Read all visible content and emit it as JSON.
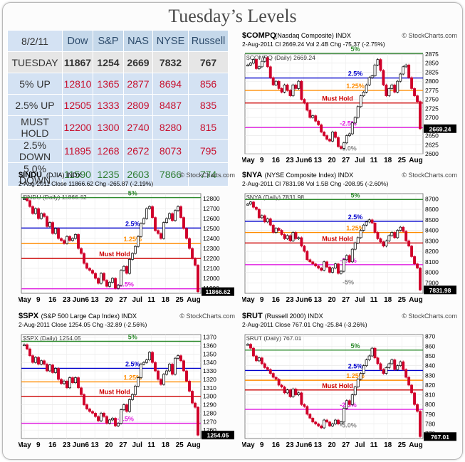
{
  "title": "Tuesday’s Levels",
  "table": {
    "date": "8/2/11",
    "columns": [
      "Dow",
      "S&P",
      "NAS",
      "NYSE",
      "Russell"
    ],
    "rows": [
      {
        "label": "TUESDAY",
        "values": [
          "11867",
          "1254",
          "2669",
          "7832",
          "767"
        ],
        "tone": "tue"
      },
      {
        "label": "5% UP",
        "values": [
          "12810",
          "1365",
          "2877",
          "8694",
          "856"
        ],
        "tone": "up"
      },
      {
        "label": "2.5% UP",
        "values": [
          "12505",
          "1333",
          "2809",
          "8487",
          "835"
        ],
        "tone": "up"
      },
      {
        "label": "MUST HOLD",
        "values": [
          "12200",
          "1300",
          "2740",
          "8280",
          "815"
        ],
        "tone": "mh"
      },
      {
        "label": "2.5% DOWN",
        "values": [
          "11895",
          "1268",
          "2672",
          "8073",
          "795"
        ],
        "tone": "d25"
      },
      {
        "label": "5.0% DOWN",
        "values": [
          "11590",
          "1235",
          "2603",
          "7866",
          "774"
        ],
        "tone": "dn"
      }
    ]
  },
  "chart_data": [
    {
      "type": "line",
      "id": "compq",
      "symbol": "$COMPQ",
      "name": "(Nasdaq Composite) INDX",
      "brand": "© StockCharts.com",
      "info": "2-Aug-2011   Cl 2669.24  Vol 2.4B  Chg -75.37 (-2.75%)",
      "legend": "$COMPQ (Daily) 2669.24",
      "x_labels": [
        "May",
        "9",
        "16",
        "23",
        "Jun6",
        "13",
        "20",
        "27",
        "Jul",
        "11",
        "18",
        "25",
        "Aug"
      ],
      "ylim": [
        2600,
        2875
      ],
      "yticks": [
        2600,
        2625,
        2650,
        2675,
        2700,
        2725,
        2750,
        2775,
        2800,
        2825,
        2850,
        2875
      ],
      "last": "2669.24",
      "last_value": 2669.24,
      "levels": [
        {
          "label": "5%",
          "value": 2877,
          "color": "#2e8b2e"
        },
        {
          "label": "2.5%",
          "value": 2809,
          "color": "#0000cc"
        },
        {
          "label": "1.25%",
          "value": 2775,
          "color": "#ff8c00"
        },
        {
          "label": "Must Hold",
          "value": 2740,
          "color": "#cc0000"
        },
        {
          "label": "-2.5%",
          "value": 2672,
          "color": "#e020e0"
        },
        {
          "label": "-5.0%",
          "value": 2603,
          "color": "#888888"
        }
      ],
      "closes": [
        2845,
        2850,
        2860,
        2835,
        2840,
        2855,
        2865,
        2840,
        2810,
        2790,
        2800,
        2780,
        2770,
        2790,
        2775,
        2760,
        2790,
        2780,
        2800,
        2750,
        2740,
        2720,
        2700,
        2705,
        2690,
        2680,
        2660,
        2650,
        2640,
        2635,
        2660,
        2645,
        2620,
        2615,
        2630,
        2650,
        2655,
        2685,
        2700,
        2730,
        2760,
        2770,
        2790,
        2810,
        2815,
        2845,
        2860,
        2830,
        2790,
        2760,
        2780,
        2790,
        2770,
        2800,
        2820,
        2840,
        2845,
        2810,
        2780,
        2760,
        2744,
        2669
      ]
    },
    {
      "type": "line",
      "id": "indu",
      "symbol": "$INDU",
      "name": "(DJIA) INDX",
      "brand": "© StockCharts.com",
      "info": "2-Aug-2011   Close 11866.62  Chg -265.87 (-2.19%)",
      "legend": "$INDU (Daily) 11866.62",
      "x_labels": [
        "May",
        "9",
        "16",
        "23",
        "Jun6",
        "13",
        "20",
        "27",
        "Jul",
        "11",
        "18",
        "25",
        "Aug"
      ],
      "ylim": [
        11850,
        12850
      ],
      "yticks": [
        11900,
        12000,
        12100,
        12200,
        12300,
        12400,
        12500,
        12600,
        12700,
        12800
      ],
      "last": "11866.62",
      "last_value": 11866.62,
      "levels": [
        {
          "label": "5%",
          "value": 12810,
          "color": "#2e8b2e"
        },
        {
          "label": "2.5%",
          "value": 12505,
          "color": "#0000cc"
        },
        {
          "label": "1.25%",
          "value": 12350,
          "color": "#ff8c00"
        },
        {
          "label": "Must Hold",
          "value": 12200,
          "color": "#cc0000"
        },
        {
          "label": "-2.5%",
          "value": 11895,
          "color": "#e020e0"
        }
      ],
      "closes": [
        12800,
        12780,
        12720,
        12650,
        12700,
        12600,
        12650,
        12620,
        12520,
        12560,
        12450,
        12500,
        12400,
        12380,
        12350,
        12420,
        12380,
        12400,
        12440,
        12300,
        12250,
        12150,
        12100,
        12080,
        12050,
        12000,
        11950,
        12050,
        11980,
        11920,
        11960,
        12000,
        11900,
        11930,
        12080,
        12120,
        12050,
        12190,
        12250,
        12320,
        12420,
        12550,
        12600,
        12700,
        12720,
        12610,
        12480,
        12450,
        12400,
        12560,
        12600,
        12650,
        12580,
        12680,
        12720,
        12610,
        12500,
        12400,
        12300,
        12200,
        12132,
        11866
      ]
    },
    {
      "type": "line",
      "id": "nya",
      "symbol": "$NYA",
      "name": "(NYSE Composite Index) INDX",
      "brand": "© StockCharts.com",
      "info": "2-Aug-2011   Cl 7831.98  Vol 1.5B  Chg -208.95 (-2.60%)",
      "legend": "$NYA (Daily) 7831.98",
      "x_labels": [
        "May",
        "9",
        "16",
        "23",
        "Jun6",
        "13",
        "20",
        "27",
        "Jul",
        "11",
        "18",
        "25",
        "Aug"
      ],
      "ylim": [
        7800,
        8750
      ],
      "yticks": [
        7900,
        8000,
        8100,
        8200,
        8300,
        8400,
        8500,
        8600,
        8700
      ],
      "last": "7831.98",
      "last_value": 7831.98,
      "levels": [
        {
          "label": "5%",
          "value": 8694,
          "color": "#2e8b2e"
        },
        {
          "label": "2.5%",
          "value": 8487,
          "color": "#0000cc"
        },
        {
          "label": "1.25%",
          "value": 8380,
          "color": "#ff8c00"
        },
        {
          "label": "Must Hold",
          "value": 8280,
          "color": "#cc0000"
        },
        {
          "label": "-2.5%",
          "value": 8073,
          "color": "#e020e0"
        },
        {
          "label": "-5%",
          "value": 7866,
          "color": "#888888"
        }
      ],
      "closes": [
        8650,
        8670,
        8620,
        8600,
        8520,
        8540,
        8480,
        8510,
        8450,
        8380,
        8420,
        8400,
        8360,
        8320,
        8350,
        8300,
        8380,
        8320,
        8330,
        8250,
        8200,
        8120,
        8100,
        8080,
        8060,
        8040,
        8020,
        8100,
        8050,
        8000,
        8040,
        8080,
        7990,
        8010,
        8120,
        8160,
        8100,
        8220,
        8280,
        8330,
        8400,
        8450,
        8480,
        8500,
        8470,
        8380,
        8320,
        8290,
        8250,
        8300,
        8350,
        8380,
        8330,
        8400,
        8430,
        8390,
        8300,
        8250,
        8150,
        8080,
        8041,
        7832
      ]
    },
    {
      "type": "line",
      "id": "spx",
      "symbol": "$SPX",
      "name": "(S&P 500 Large Cap Index) INDX",
      "brand": "© StockCharts.com",
      "info": "2-Aug-2011   Close 1254.05  Chg -32.89 (-2.56%)",
      "legend": "$SPX (Daily) 1254.05",
      "x_labels": [
        "May",
        "9",
        "16",
        "23",
        "Jun6",
        "13",
        "20",
        "27",
        "Jul",
        "11",
        "18",
        "25",
        "Aug"
      ],
      "ylim": [
        1250,
        1373
      ],
      "yticks": [
        1260,
        1270,
        1280,
        1290,
        1300,
        1310,
        1320,
        1330,
        1340,
        1350,
        1360,
        1370
      ],
      "last": "1254.05",
      "last_value": 1254.05,
      "levels": [
        {
          "label": "5%",
          "value": 1365,
          "color": "#2e8b2e"
        },
        {
          "label": "2.5%",
          "value": 1333,
          "color": "#0000cc"
        },
        {
          "label": "1.25%",
          "value": 1317,
          "color": "#ff8c00"
        },
        {
          "label": "Must Hold",
          "value": 1300,
          "color": "#cc0000"
        },
        {
          "label": "-2.5%",
          "value": 1268,
          "color": "#e020e0"
        }
      ],
      "closes": [
        1361,
        1356,
        1348,
        1340,
        1346,
        1338,
        1342,
        1338,
        1330,
        1337,
        1328,
        1333,
        1320,
        1315,
        1318,
        1310,
        1322,
        1316,
        1322,
        1310,
        1302,
        1290,
        1285,
        1282,
        1280,
        1276,
        1271,
        1280,
        1276,
        1268,
        1272,
        1274,
        1265,
        1268,
        1284,
        1290,
        1282,
        1296,
        1302,
        1312,
        1322,
        1338,
        1340,
        1343,
        1352,
        1340,
        1330,
        1320,
        1314,
        1326,
        1330,
        1338,
        1326,
        1345,
        1348,
        1342,
        1330,
        1318,
        1306,
        1292,
        1287,
        1254
      ]
    },
    {
      "type": "line",
      "id": "rut",
      "symbol": "$RUT",
      "name": "(Russell 2000) INDX",
      "brand": "© StockCharts.com",
      "info": "2-Aug-2011   Close 767.01  Chg -25.84 (-3.26%)",
      "legend": "$RUT (Daily) 767.01",
      "x_labels": [
        "May",
        "9",
        "16",
        "23",
        "Jun6",
        "13",
        "20",
        "27",
        "Jul",
        "11",
        "18",
        "25",
        "Aug"
      ],
      "ylim": [
        765,
        872
      ],
      "yticks": [
        770,
        780,
        790,
        800,
        810,
        820,
        830,
        840,
        850,
        860,
        870
      ],
      "last": "767.01",
      "last_value": 767.01,
      "levels": [
        {
          "label": "5%",
          "value": 856,
          "color": "#2e8b2e"
        },
        {
          "label": "2.5%",
          "value": 835,
          "color": "#0000cc"
        },
        {
          "label": "1.25%",
          "value": 825,
          "color": "#ff8c00"
        },
        {
          "label": "Must Hold",
          "value": 815,
          "color": "#cc0000"
        },
        {
          "label": "-2.5%",
          "value": 795,
          "color": "#e020e0"
        },
        {
          "label": "-5.0%",
          "value": 774,
          "color": "#888888"
        }
      ],
      "closes": [
        862,
        858,
        850,
        845,
        848,
        842,
        838,
        836,
        832,
        828,
        826,
        820,
        818,
        812,
        815,
        808,
        816,
        810,
        812,
        800,
        798,
        790,
        786,
        782,
        780,
        778,
        776,
        784,
        782,
        778,
        780,
        784,
        780,
        782,
        796,
        804,
        800,
        810,
        818,
        826,
        832,
        840,
        846,
        850,
        858,
        848,
        842,
        836,
        832,
        838,
        842,
        846,
        836,
        840,
        844,
        836,
        828,
        820,
        812,
        800,
        793,
        767
      ]
    }
  ]
}
